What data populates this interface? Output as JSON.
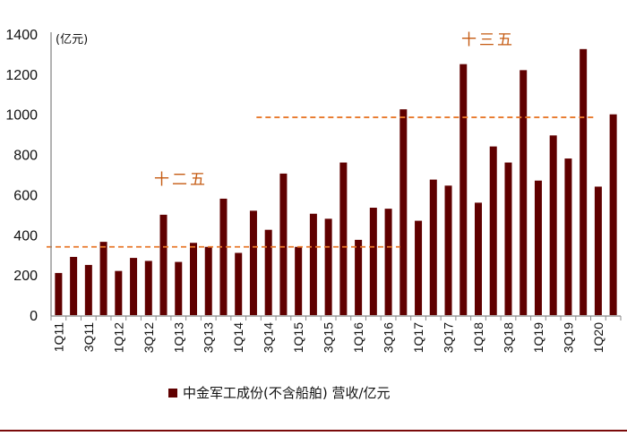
{
  "chart_data": {
    "type": "bar",
    "title": "",
    "unit_label": "(亿元)",
    "xlabel": "",
    "ylabel": "",
    "ylim": [
      0,
      1400
    ],
    "yticks": [
      0,
      200,
      400,
      600,
      800,
      1000,
      1200,
      1400
    ],
    "grid": false,
    "legend_position": "bottom",
    "bar_color": "#600000",
    "categories": [
      "1Q11",
      "2Q11",
      "3Q11",
      "4Q11",
      "1Q12",
      "2Q12",
      "3Q12",
      "4Q12",
      "1Q13",
      "2Q13",
      "3Q13",
      "4Q13",
      "1Q14",
      "2Q14",
      "3Q14",
      "4Q14",
      "1Q15",
      "2Q15",
      "3Q15",
      "4Q15",
      "1Q16",
      "2Q16",
      "3Q16",
      "4Q16",
      "1Q17",
      "2Q17",
      "3Q17",
      "4Q17",
      "1Q18",
      "2Q18",
      "3Q18",
      "4Q18",
      "1Q19",
      "2Q19",
      "3Q19",
      "4Q19",
      "1Q20",
      "2Q20"
    ],
    "tick_labels_shown": [
      "1Q11",
      "3Q11",
      "1Q12",
      "3Q12",
      "1Q13",
      "3Q13",
      "1Q14",
      "3Q14",
      "1Q15",
      "3Q15",
      "1Q16",
      "3Q16",
      "1Q17",
      "3Q17",
      "1Q18",
      "3Q18",
      "1Q19",
      "3Q19",
      "1Q20"
    ],
    "series": [
      {
        "name": "中金军工成份(不含船舶) 营收/亿元",
        "values": [
          210,
          290,
          250,
          365,
          220,
          285,
          270,
          500,
          265,
          360,
          340,
          580,
          310,
          520,
          425,
          705,
          340,
          505,
          480,
          760,
          375,
          535,
          530,
          1025,
          470,
          675,
          645,
          1250,
          560,
          840,
          760,
          1220,
          670,
          895,
          780,
          1325,
          640,
          1000
        ]
      }
    ],
    "annotations": [
      {
        "label": "十二五",
        "average": 340,
        "from": "1Q11",
        "to": "3Q16",
        "color": "#E8782A",
        "text_color": "#C55A11"
      },
      {
        "label": "十三五",
        "average": 985,
        "from": "3Q14",
        "to": "4Q19",
        "color": "#E8782A",
        "text_color": "#C55A11"
      }
    ]
  }
}
